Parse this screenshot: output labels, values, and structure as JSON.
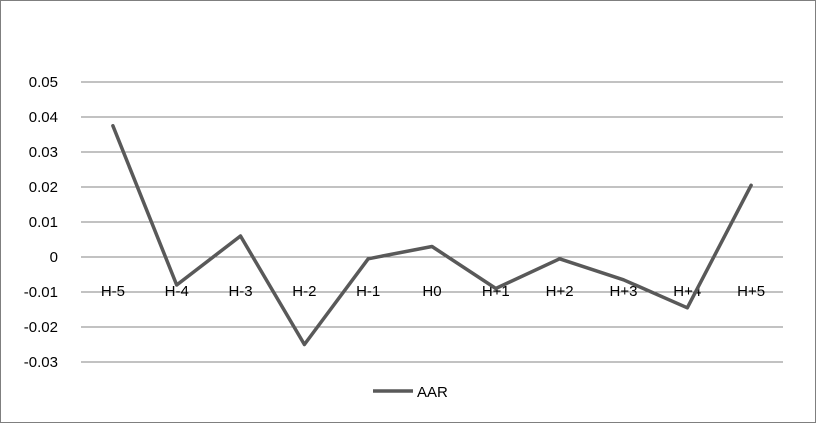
{
  "chart_data": {
    "type": "line",
    "title": "",
    "xlabel": "",
    "ylabel": "",
    "categories": [
      "H-5",
      "H-4",
      "H-3",
      "H-2",
      "H-1",
      "H0",
      "H+1",
      "H+2",
      "H+3",
      "H+4",
      "H+5"
    ],
    "y_ticks": [
      "0.05",
      "0.04",
      "0.03",
      "0.02",
      "0.01",
      "0",
      "-0.01",
      "-0.02",
      "-0.03"
    ],
    "ylim": [
      -0.03,
      0.05
    ],
    "grid": true,
    "legend_position": "bottom",
    "series": [
      {
        "name": "AAR",
        "color": "#595959",
        "values": [
          0.0375,
          -0.008,
          0.006,
          -0.025,
          -0.0005,
          0.003,
          -0.009,
          -0.0005,
          -0.0065,
          -0.0145,
          0.0205
        ]
      }
    ]
  }
}
